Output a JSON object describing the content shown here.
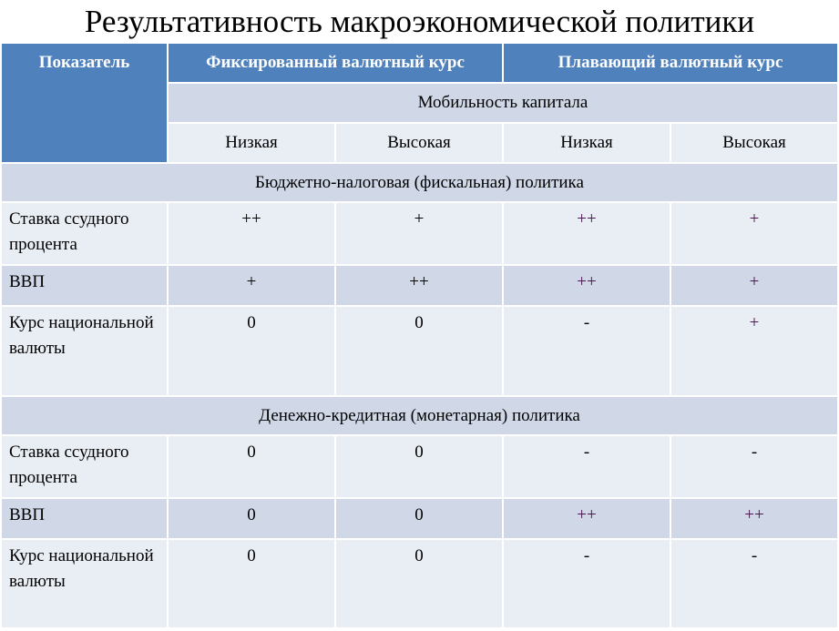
{
  "title": "Результативность макроэкономической политики",
  "header": {
    "indicator": "Показатель",
    "fixed": "Фиксированный валютный курс",
    "floating": "Плавающий валютный курс",
    "mobility": "Мобильность капитала",
    "levels": [
      "Низкая",
      "Высокая",
      "Низкая",
      "Высокая"
    ]
  },
  "sections": [
    {
      "title": "Бюджетно-налоговая (фискальная) политика",
      "rows": [
        {
          "label": "Ставка ссудного процента",
          "values": [
            "++",
            "+",
            "++",
            "+"
          ]
        },
        {
          "label": "ВВП",
          "values": [
            "+",
            "++",
            "++",
            "+"
          ]
        },
        {
          "label": "Курс национальной валюты",
          "values": [
            "0",
            "0",
            "-",
            "+"
          ]
        }
      ]
    },
    {
      "title": "Денежно-кредитная (монетарная) политика",
      "rows": [
        {
          "label": "Ставка ссудного процента",
          "values": [
            "0",
            "0",
            "-",
            "-"
          ]
        },
        {
          "label": "ВВП",
          "values": [
            "0",
            "0",
            "++",
            "++"
          ]
        },
        {
          "label": "Курс национальной валюты",
          "values": [
            "0",
            "0",
            "-",
            "-"
          ]
        }
      ]
    }
  ],
  "colors": {
    "header": "#4f81bd",
    "band": "#d0d8e8",
    "light": "#e9edf4"
  }
}
